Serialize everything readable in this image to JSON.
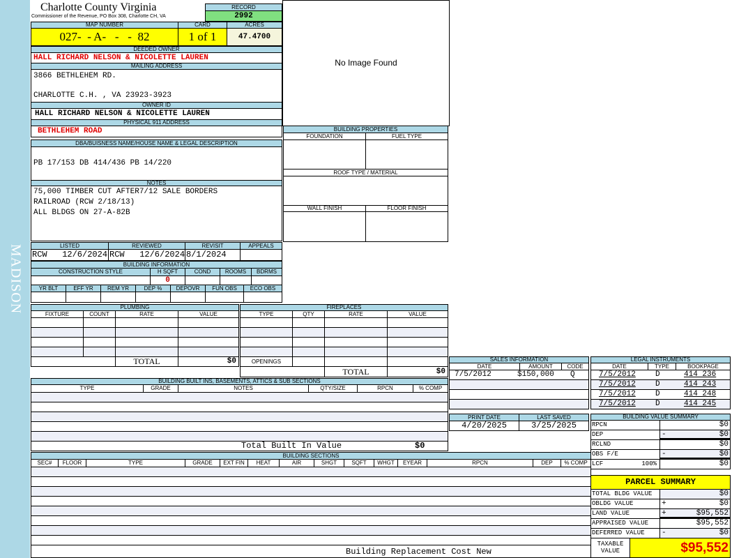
{
  "side_label": "MADISON",
  "header": {
    "title": "Charlotte County Virginia",
    "subtitle": "Commissioner of the Revenue, PO Box 308, Charlotte CH, VA",
    "record_label": "RECORD",
    "record": "2992"
  },
  "parcel": {
    "map_number_label": "MAP NUMBER",
    "map_number": "027-  - A-   -   -  82",
    "card_label": "CARD",
    "card": "1 of 1",
    "acres_label": "ACRES",
    "acres": "47.4700"
  },
  "owner": {
    "deeded_label": "DEEDED OWNER",
    "deeded": "HALL RICHARD NELSON & NICOLETTE LAUREN",
    "mailing_label": "MAILING ADDRESS",
    "mailing_line1": "3866 BETHLEHEM RD.",
    "mailing_line2": "CHARLOTTE C.H. , VA 23923-3923",
    "owner_id_label": "OWNER ID",
    "owner_id": "HALL RICHARD NELSON & NICOLETTE LAUREN",
    "physical_label": "PHYSICAL 911 ADDRESS",
    "physical": "BETHLEHEM ROAD"
  },
  "image": {
    "text": "No Image Found"
  },
  "dba": {
    "label": "DBA/BUISNESS NAME/HOUSE NAME & LEGAL DESCRIPTION",
    "value": "PB 17/153 DB 414/436 PB 14/220"
  },
  "notes": {
    "label": "NOTES",
    "lines": [
      "75,000 TIMBER CUT AFTER7/12 SALE BORDERS",
      "RAILROAD (RCW 2/18/13)",
      "ALL BLDGS ON 27-A-82B"
    ]
  },
  "building_properties": {
    "label": "BUILDING PROPERTIES",
    "foundation": "FOUNDATION",
    "fuel": "FUEL TYPE",
    "roof": "ROOF TYPE / MATERIAL",
    "wall": "WALL FINISH",
    "floor": "FLOOR FINISH"
  },
  "review": {
    "headers": [
      "LISTED",
      "REVIEWED",
      "REVISIT",
      "APPEALS"
    ],
    "values": [
      "RCW   12/6/2024",
      "RCW   12/6/2024",
      "8/1/2024",
      ""
    ]
  },
  "building_info": {
    "label": "BUILDING INFORMATION",
    "headers1": [
      "CONSTRUCTION STYLE",
      "H SQFT",
      "COND",
      "ROOMS",
      "BDRMS"
    ],
    "values1": [
      "",
      "0",
      "",
      "",
      ""
    ],
    "headers2": [
      "YR BLT",
      "EFF YR",
      "REM YR",
      "DEP %",
      "DEPOVR",
      "FUN OBS",
      "ECO OBS"
    ]
  },
  "plumbing": {
    "label": "PLUMBING",
    "headers": [
      "FIXTURE",
      "COUNT",
      "RATE",
      "VALUE"
    ],
    "total_label": "TOTAL",
    "total": "$0"
  },
  "fireplaces": {
    "label": "FIREPLACES",
    "headers": [
      "TYPE",
      "QTY",
      "RATE",
      "VALUE"
    ],
    "openings_label": "OPENINGS",
    "total_label": "TOTAL",
    "total": "$0"
  },
  "sales": {
    "label": "SALES INFORMATION",
    "headers": [
      "DATE",
      "AMOUNT",
      "CODE"
    ],
    "rows": [
      [
        "7/5/2012",
        "$150,000",
        "Q"
      ],
      [
        "",
        "",
        ""
      ],
      [
        "",
        "",
        ""
      ],
      [
        "",
        "",
        ""
      ]
    ]
  },
  "legal": {
    "label": "LEGAL INSTRUMENTS",
    "headers": [
      "DATE",
      "TYPE",
      "BOOKPAGE"
    ],
    "rows": [
      [
        "7/5/2012",
        "D",
        "414 236"
      ],
      [
        "7/5/2012",
        "D",
        "414 243"
      ],
      [
        "7/5/2012",
        "D",
        "414 248"
      ],
      [
        "7/5/2012",
        "D",
        "414 245"
      ]
    ]
  },
  "dates": {
    "print_label": "PRINT DATE",
    "print": "4/20/2025",
    "saved_label": "LAST SAVED",
    "saved": "3/25/2025"
  },
  "value_summary": {
    "label": "BUILDING VALUE SUMMARY",
    "rows": [
      {
        "label": "RPCN",
        "op": "",
        "value": "$0"
      },
      {
        "label": "DEP",
        "op": "-",
        "value": "$0"
      },
      {
        "label": "RCLND",
        "op": "",
        "value": "$0"
      },
      {
        "label": "OBS F/E",
        "op": "-",
        "value": "$0"
      },
      {
        "label": "LCF",
        "pct": "100%",
        "op": "",
        "value": "$0"
      }
    ]
  },
  "built_ins": {
    "label": "BUILDING BUILT INS, BASEMENTS, ATTICS & SUB SECTIONS",
    "headers": [
      "TYPE",
      "GRADE",
      "NOTES",
      "QTY/SIZE",
      "RPCN",
      "% COMP"
    ],
    "total_label": "Total Built In Value",
    "total": "$0"
  },
  "sections": {
    "label": "BUILDING SECTIONS",
    "headers": [
      "SEC#",
      "FLOOR",
      "TYPE",
      "GRADE",
      "EXT FIN",
      "HEAT",
      "AIR",
      "SHGT",
      "SQFT",
      "WHGT",
      "EYEAR",
      "RPCN",
      "DEP",
      "% COMP"
    ],
    "footer": "Building Replacement Cost New"
  },
  "parcel_summary": {
    "label": "PARCEL SUMMARY",
    "rows": [
      {
        "label": "TOTAL BLDG VALUE",
        "op": "",
        "value": "$0"
      },
      {
        "label": "OBLDG VALUE",
        "op": "+",
        "value": "$0"
      },
      {
        "label": "LAND VALUE",
        "op": "+",
        "value": "$95,552"
      },
      {
        "label": "APPRAISED VALUE",
        "op": "",
        "value": "$95,552"
      },
      {
        "label": "DEFERRED VALUE",
        "op": "-",
        "value": "$0"
      }
    ],
    "taxable_label": "TAXABLE VALUE",
    "taxable": "$95,552"
  },
  "colors": {
    "header_blue": "#add8e6",
    "record_green": "#80e080",
    "map_yellow": "#ffff00",
    "acres_beige": "#f5f5dc",
    "red": "#e00000"
  }
}
